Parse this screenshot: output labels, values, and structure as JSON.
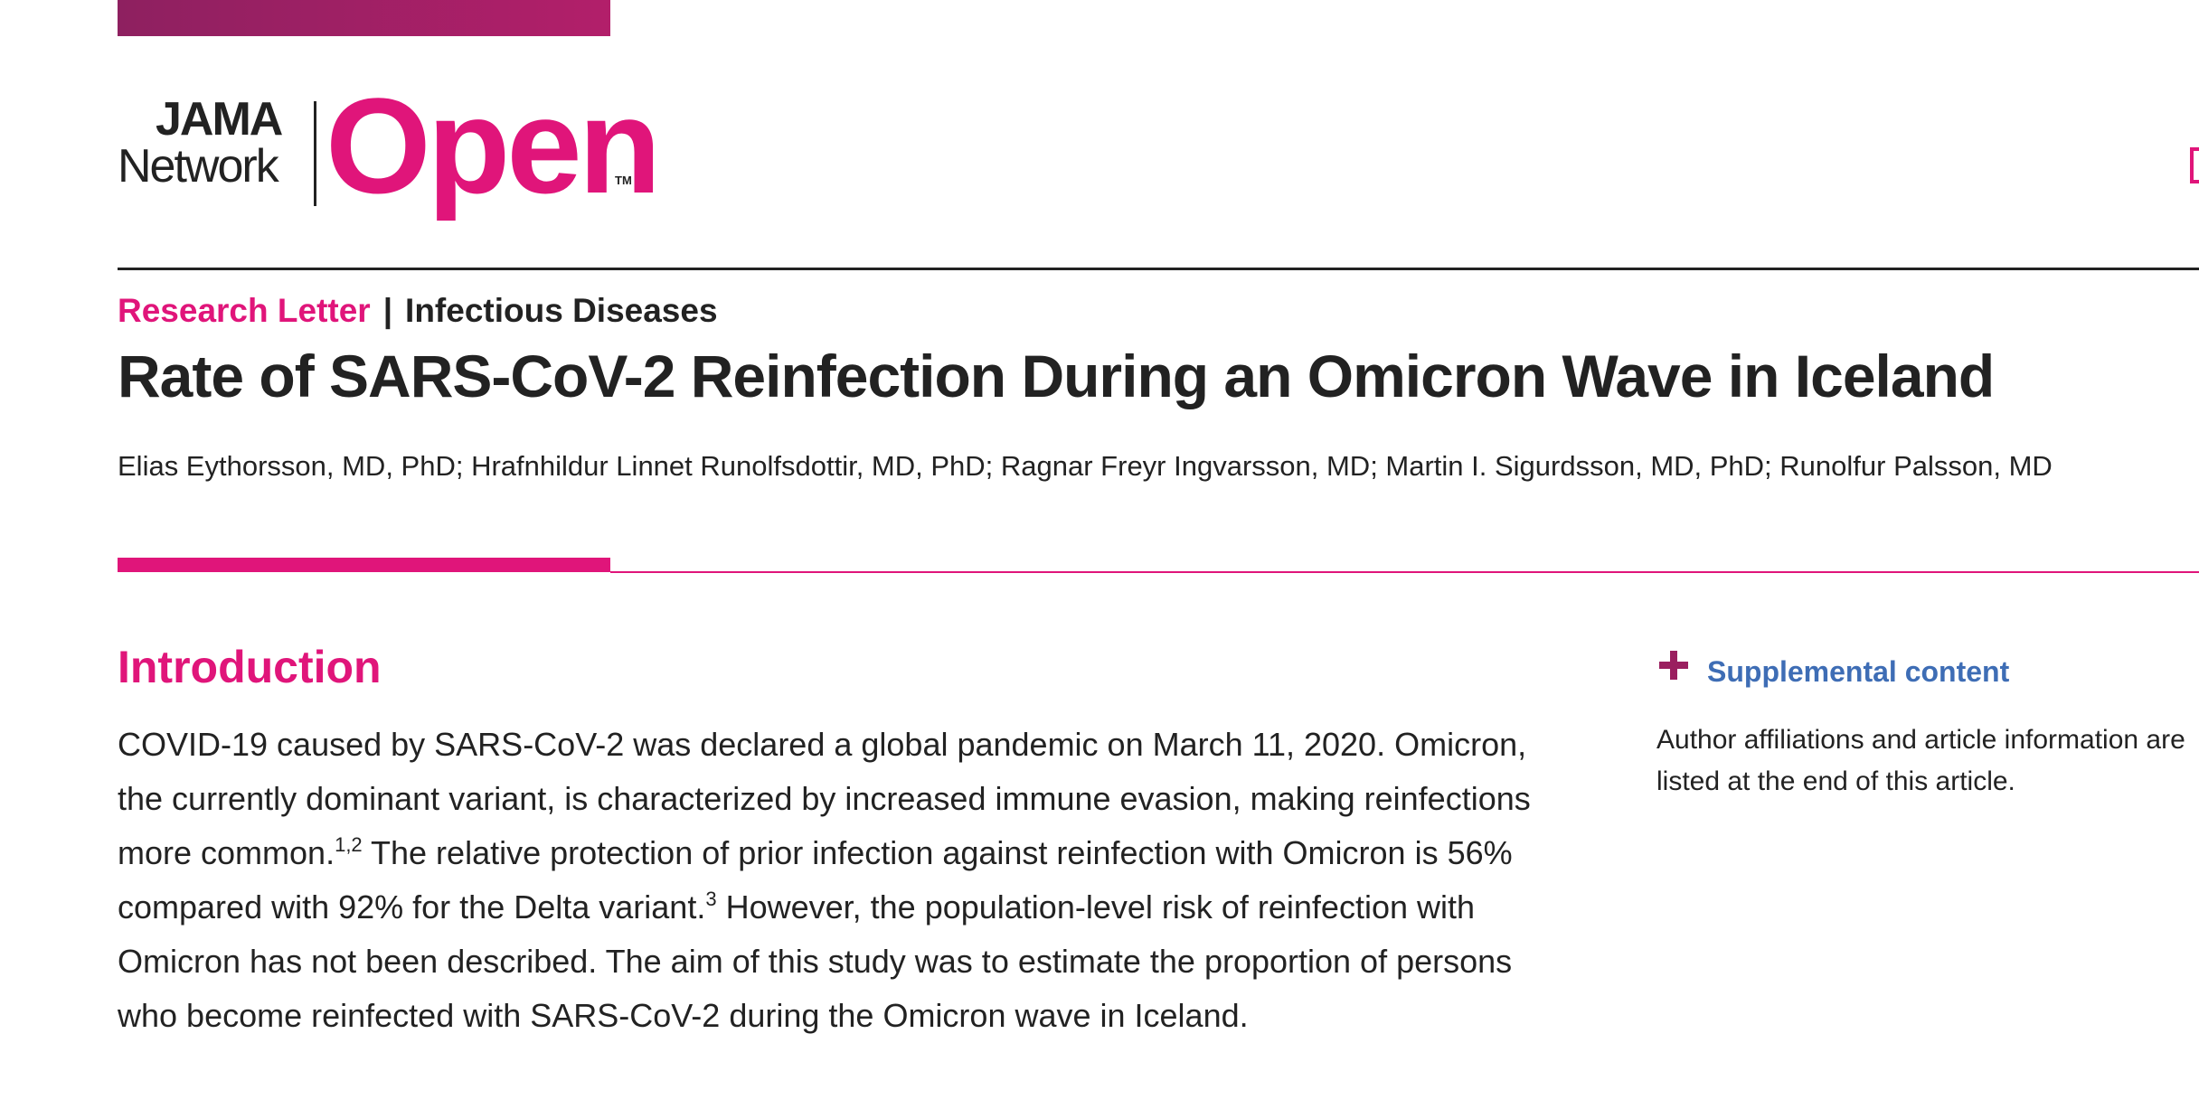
{
  "header": {
    "logo": {
      "jama": "JAMA",
      "network": "Network",
      "open": "Open",
      "tm": "TM"
    }
  },
  "article": {
    "type": "Research Letter",
    "separator": "|",
    "category": "Infectious Diseases",
    "title": "Rate of SARS-CoV-2 Reinfection During an Omicron Wave in Iceland",
    "authors": "Elias Eythorsson, MD, PhD; Hrafnhildur Linnet Runolfsdottir, MD, PhD; Ragnar Freyr Ingvarsson, MD; Martin I. Sigurdsson, MD, PhD; Runolfur Palsson, MD"
  },
  "section": {
    "heading": "Introduction",
    "paragraph": [
      "COVID-19 caused by SARS-CoV-2 was declared a global pandemic on March 11, 2020. Omicron, the currently dominant variant, is characterized by increased immune evasion, making reinfections more common.",
      "1,2",
      " The relative protection of prior infection against reinfection with Omicron is 56% compared with 92% for the Delta variant.",
      "3",
      " However, the population-level risk of reinfection with Omicron has not been described. The aim of this study was to estimate the proportion of persons who become reinfected with SARS-CoV-2 during the Omicron wave in Iceland."
    ]
  },
  "sidebar": {
    "link": "Supplemental content",
    "note": "Author affiliations and article information are listed at the end of this article."
  }
}
